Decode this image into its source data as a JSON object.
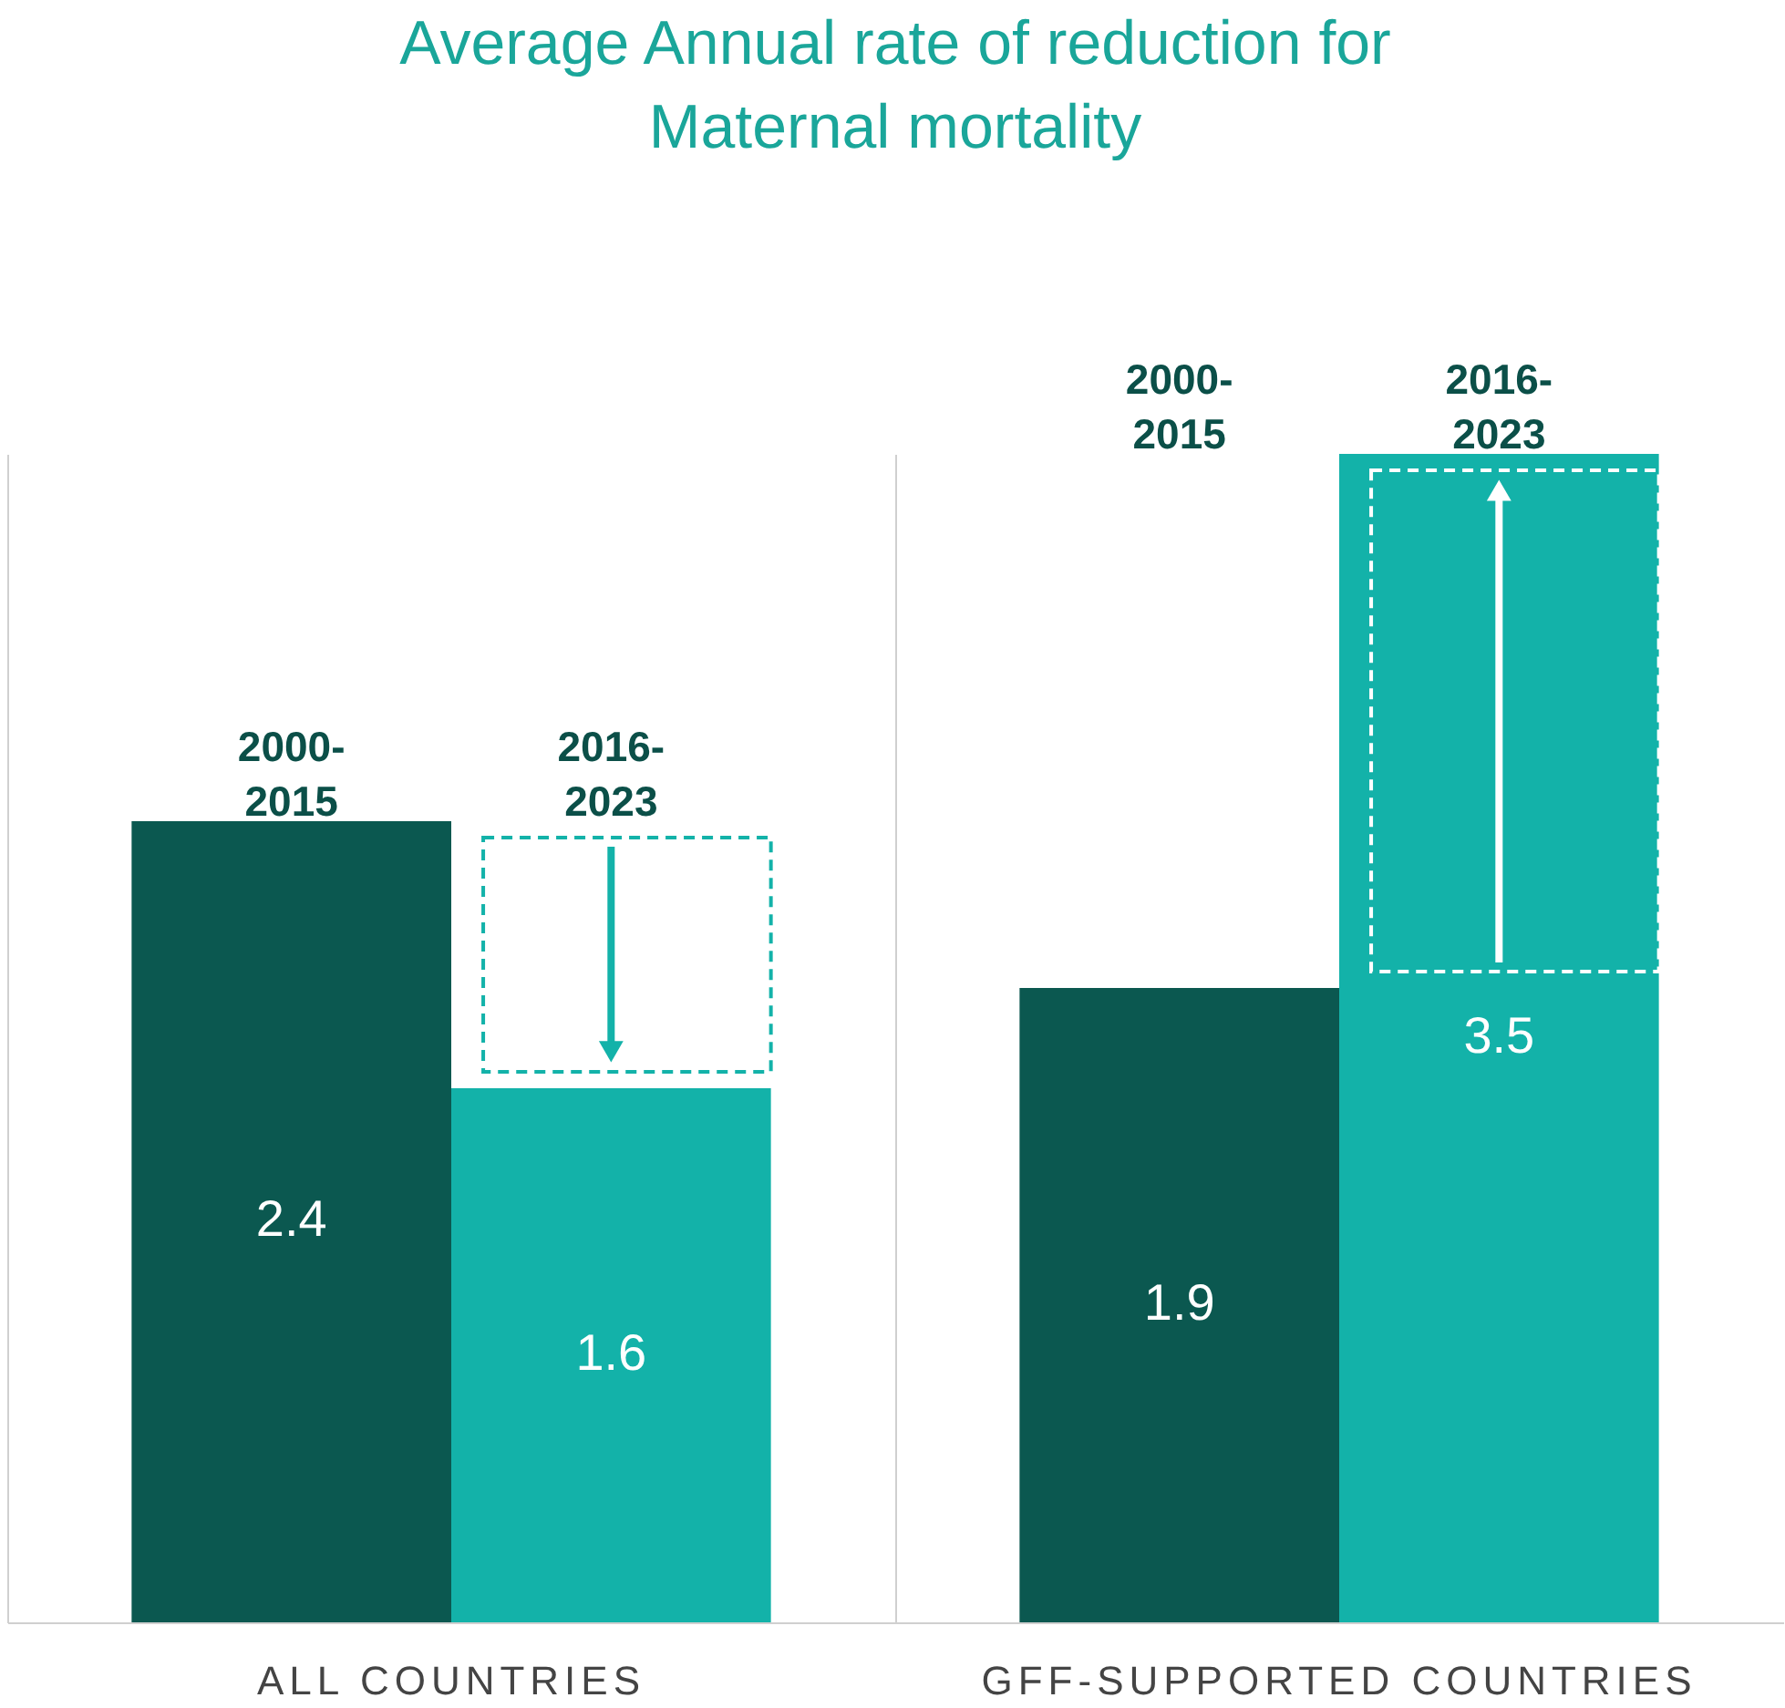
{
  "chart_data": {
    "type": "bar",
    "title": "Average Annual rate of reduction for Maternal mortality",
    "categories": [
      "ALL COUNTRIES",
      "GFF-SUPPORTED COUNTRIES"
    ],
    "series": [
      {
        "name": "2000-2015",
        "color": "#0b5850",
        "values": [
          2.4,
          1.9
        ]
      },
      {
        "name": "2016-2023",
        "color": "#13b2a9",
        "values": [
          1.6,
          3.5
        ]
      }
    ],
    "data_labels": true,
    "grid": "x"
  }
}
